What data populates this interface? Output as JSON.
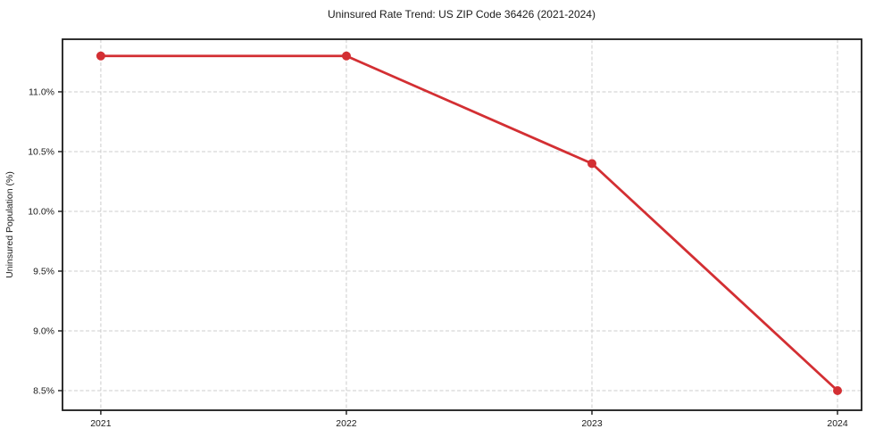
{
  "chart_data": {
    "type": "line",
    "title": "Uninsured Rate Trend: US ZIP Code 36426 (2021-2024)",
    "xlabel": "",
    "ylabel": "Uninsured Population (%)",
    "x": [
      2021,
      2022,
      2023,
      2024
    ],
    "series": [
      {
        "name": "Uninsured Population (%)",
        "values": [
          11.3,
          11.3,
          10.4,
          8.5
        ]
      }
    ],
    "x_tick_labels": [
      "2021",
      "2022",
      "2023",
      "2024"
    ],
    "y_ticks": [
      8.5,
      9.0,
      9.5,
      10.0,
      10.5,
      11.0
    ],
    "y_tick_labels": [
      "8.5%",
      "9.0%",
      "9.5%",
      "10.0%",
      "10.5%",
      "11.0%"
    ],
    "xlim": [
      2020.844,
      2024.098
    ],
    "ylim": [
      8.336,
      11.44
    ],
    "grid": true,
    "grid_style": "dashed",
    "legend": "none",
    "colors": {
      "line": "#d32f33",
      "marker": "#d32f33",
      "grid": "#cccccc",
      "spine": "#1a1a1a",
      "background": "#ffffff",
      "text": "#1a1a1a"
    }
  }
}
